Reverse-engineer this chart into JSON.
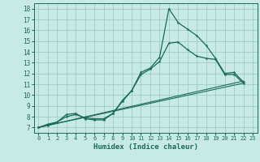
{
  "xlabel": "Humidex (Indice chaleur)",
  "background_color": "#c8eae5",
  "grid_color": "#a0ccc5",
  "line_color": "#1a6b5a",
  "xlim": [
    -0.5,
    23.5
  ],
  "ylim": [
    6.5,
    18.5
  ],
  "xticks": [
    0,
    1,
    2,
    3,
    4,
    5,
    6,
    7,
    8,
    9,
    10,
    11,
    12,
    13,
    14,
    15,
    16,
    17,
    18,
    19,
    20,
    21,
    22,
    23
  ],
  "yticks": [
    7,
    8,
    9,
    10,
    11,
    12,
    13,
    14,
    15,
    16,
    17,
    18
  ],
  "line1_x": [
    0,
    1,
    2,
    3,
    4,
    5,
    6,
    7,
    8,
    9,
    10,
    11,
    12,
    13,
    14,
    15,
    16,
    17,
    18,
    19,
    20,
    21,
    22
  ],
  "line1_y": [
    7.0,
    7.3,
    7.5,
    8.2,
    8.3,
    7.8,
    7.7,
    7.7,
    8.3,
    9.5,
    10.4,
    12.1,
    12.5,
    13.5,
    18.0,
    16.7,
    16.1,
    15.5,
    14.6,
    13.4,
    12.0,
    12.1,
    11.2
  ],
  "line2_x": [
    0,
    1,
    2,
    3,
    4,
    5,
    6,
    7,
    8,
    9,
    10,
    11,
    12,
    13,
    14,
    15,
    16,
    17,
    18,
    19,
    20,
    21,
    22
  ],
  "line2_y": [
    7.0,
    7.2,
    7.5,
    8.0,
    8.2,
    7.9,
    7.8,
    7.8,
    8.3,
    9.4,
    10.4,
    11.9,
    12.4,
    13.1,
    14.8,
    14.9,
    14.2,
    13.6,
    13.4,
    13.3,
    11.9,
    11.9,
    11.1
  ],
  "line3_x": [
    0,
    22
  ],
  "line3_y": [
    7.0,
    11.3
  ],
  "line4_x": [
    0,
    22
  ],
  "line4_y": [
    7.0,
    11.1
  ]
}
